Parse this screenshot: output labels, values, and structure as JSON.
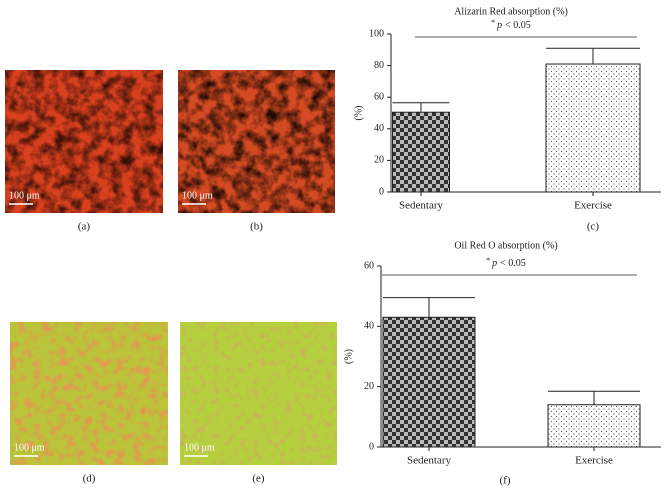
{
  "panels": [
    {
      "label": "(a)",
      "scale": "100 μm"
    },
    {
      "label": "(b)",
      "scale": "100 μm"
    },
    {
      "label": "(d)",
      "scale": "100 μm"
    },
    {
      "label": "(e)",
      "scale": "100 μm"
    }
  ],
  "chart_data": [
    {
      "type": "bar",
      "title": "Alizarin Red absorption (%)",
      "significance_mark": "*",
      "significance_symbol": "p",
      "significance_text": "< 0.05",
      "ylabel": "(%)",
      "panel_label": "(c)",
      "categories": [
        "Sedentary",
        "Exercise"
      ],
      "values": [
        50.5,
        81
      ],
      "errors": [
        6,
        10
      ],
      "bar_styles": [
        "checker",
        "dots"
      ],
      "ylim": [
        0,
        100
      ],
      "yticks": [
        0,
        20,
        40,
        60,
        80,
        100
      ]
    },
    {
      "type": "bar",
      "title": "Oil Red O absorption (%)",
      "significance_mark": "*",
      "significance_symbol": "p",
      "significance_text": "< 0.05",
      "ylabel": "(%)",
      "panel_label": "(f)",
      "categories": [
        "Sedentary",
        "Exercise"
      ],
      "values": [
        43,
        14
      ],
      "errors": [
        6.5,
        4.5
      ],
      "bar_styles": [
        "checker",
        "dots"
      ],
      "ylim": [
        0,
        60
      ],
      "yticks": [
        0,
        20,
        40,
        60
      ]
    }
  ]
}
